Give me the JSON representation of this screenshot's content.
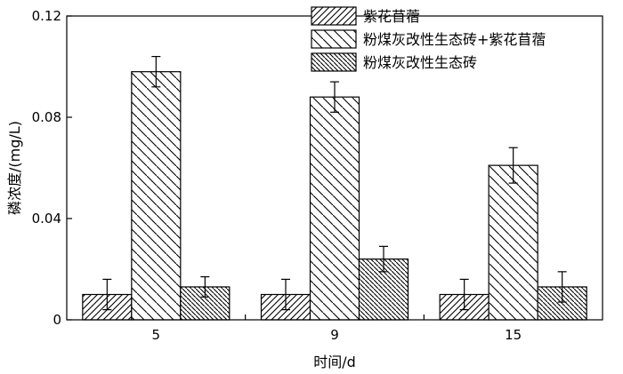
{
  "chart_data": {
    "type": "bar",
    "categories": [
      "5",
      "9",
      "15"
    ],
    "series": [
      {
        "name": "紫花苜蓿",
        "values": [
          0.01,
          0.01,
          0.01
        ],
        "errors": [
          0.006,
          0.006,
          0.006
        ]
      },
      {
        "name": "粉煤灰改性生态砖+紫花苜蓿",
        "values": [
          0.098,
          0.088,
          0.061
        ],
        "errors": [
          0.006,
          0.006,
          0.007
        ]
      },
      {
        "name": "粉煤灰改性生态砖",
        "values": [
          0.013,
          0.024,
          0.013
        ],
        "errors": [
          0.004,
          0.005,
          0.006
        ]
      }
    ],
    "xlabel": "时间/d",
    "ylabel": "磷浓度/(mg/L)",
    "ylim": [
      0,
      0.12
    ],
    "yticks": [
      "0",
      "0.04",
      "0.08",
      "0.12"
    ],
    "legend_position": "top-right",
    "grid": false
  }
}
